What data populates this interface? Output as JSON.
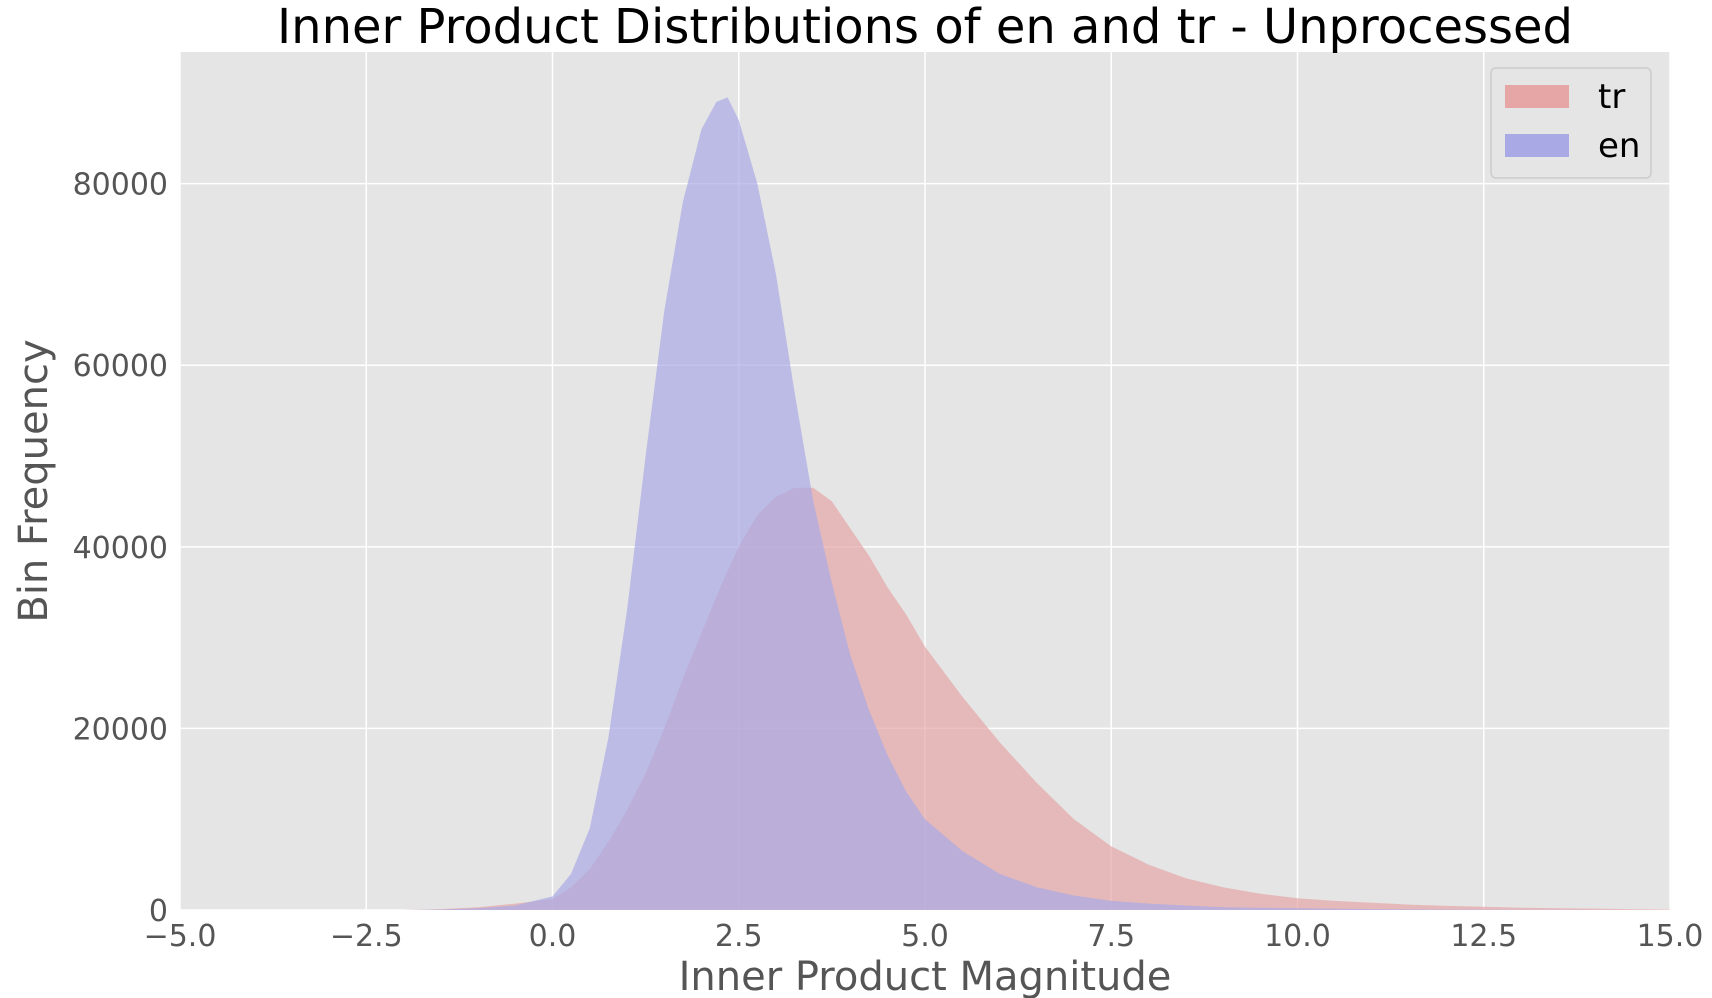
{
  "colors": {
    "background": "#e5e5e5",
    "grid": "#ffffff",
    "tr": "#e6a6a6",
    "en": "#a9a9e6",
    "overlap": "#b58fc2"
  },
  "chart_data": {
    "type": "area",
    "title": "Inner Product Distributions of en and tr - Unprocessed",
    "xlabel": "Inner Product Magnitude",
    "ylabel": "Bin Frequency",
    "xlim": [
      -5.0,
      15.0
    ],
    "ylim": [
      0,
      94500
    ],
    "grid": true,
    "legend_position": "top-right",
    "x_ticks": [
      -5.0,
      -2.5,
      0.0,
      2.5,
      5.0,
      7.5,
      10.0,
      12.5,
      15.0
    ],
    "x_tick_labels": [
      "−5.0",
      "−2.5",
      "0.0",
      "2.5",
      "5.0",
      "7.5",
      "10.0",
      "12.5",
      "15.0"
    ],
    "y_ticks": [
      0,
      20000,
      40000,
      60000,
      80000
    ],
    "y_tick_labels": [
      "0",
      "20000",
      "40000",
      "60000",
      "80000"
    ],
    "series": [
      {
        "name": "tr",
        "color": "#e6a6a6",
        "x": [
          -2.0,
          -1.5,
          -1.0,
          -0.5,
          0.0,
          0.25,
          0.5,
          0.75,
          1.0,
          1.25,
          1.5,
          1.75,
          2.0,
          2.25,
          2.5,
          2.75,
          3.0,
          3.25,
          3.5,
          3.75,
          4.0,
          4.25,
          4.5,
          4.75,
          5.0,
          5.5,
          6.0,
          6.5,
          7.0,
          7.5,
          8.0,
          8.5,
          9.0,
          9.5,
          10.0,
          10.5,
          11.0,
          11.5,
          12.0,
          12.5,
          13.0,
          13.5,
          14.0,
          14.5,
          15.0
        ],
        "values": [
          0,
          100,
          300,
          700,
          1200,
          2500,
          4500,
          7500,
          11000,
          15000,
          20000,
          25500,
          30500,
          35500,
          40000,
          43500,
          45500,
          46500,
          46500,
          45000,
          42000,
          39000,
          35500,
          32500,
          29000,
          23500,
          18500,
          14000,
          10000,
          7000,
          5000,
          3500,
          2500,
          1800,
          1300,
          1000,
          800,
          600,
          450,
          350,
          250,
          200,
          150,
          100,
          50
        ]
      },
      {
        "name": "en",
        "color": "#a9a9e6",
        "x": [
          -2.0,
          -1.5,
          -1.0,
          -0.5,
          0.0,
          0.25,
          0.5,
          0.75,
          1.0,
          1.25,
          1.5,
          1.75,
          2.0,
          2.2,
          2.35,
          2.5,
          2.75,
          3.0,
          3.25,
          3.5,
          3.75,
          4.0,
          4.25,
          4.5,
          4.75,
          5.0,
          5.5,
          6.0,
          6.5,
          7.0,
          7.5,
          8.0,
          8.5,
          9.0,
          10.0,
          11.0,
          12.0,
          13.0,
          14.0,
          15.0
        ],
        "values": [
          0,
          50,
          200,
          500,
          1500,
          4000,
          9000,
          19000,
          33000,
          50000,
          66000,
          78000,
          86000,
          89000,
          89500,
          87000,
          80000,
          70000,
          57000,
          45000,
          36000,
          28000,
          22000,
          17000,
          13000,
          10000,
          6500,
          4000,
          2500,
          1600,
          1000,
          700,
          500,
          300,
          200,
          100,
          50,
          30,
          10,
          0
        ]
      }
    ]
  }
}
